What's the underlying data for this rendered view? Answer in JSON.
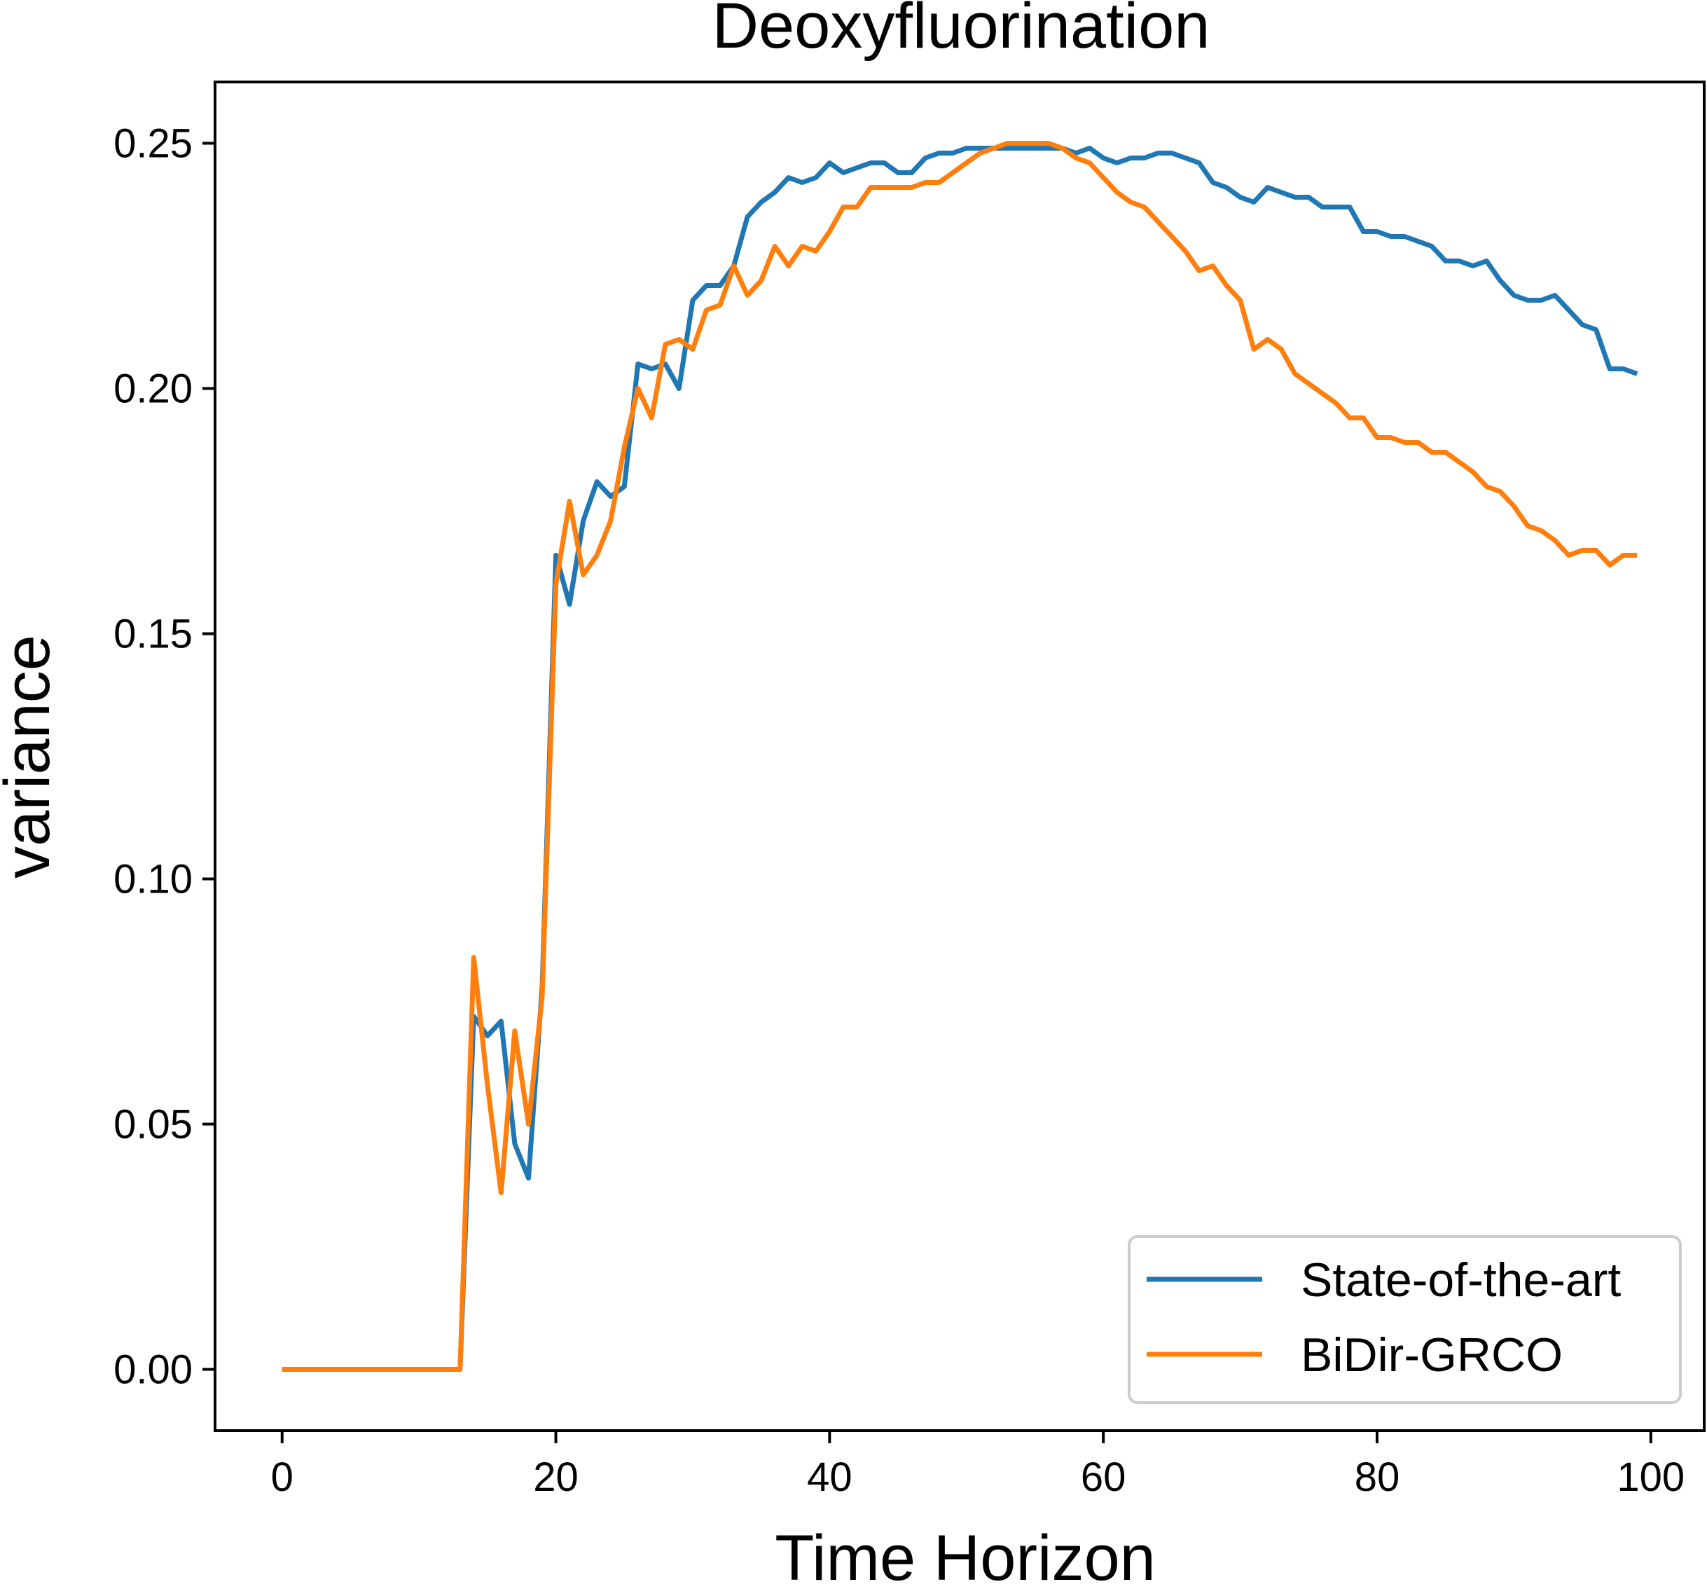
{
  "chart_data": {
    "type": "line",
    "title": "Deoxyfluorination",
    "xlabel": "Time Horizon",
    "ylabel": "variance",
    "xlim": [
      -4.9,
      103.9
    ],
    "ylim": [
      -0.0125,
      0.2625
    ],
    "xticks": [
      0,
      20,
      40,
      60,
      80,
      100
    ],
    "xtick_labels": [
      "0",
      "20",
      "40",
      "60",
      "80",
      "100"
    ],
    "yticks": [
      0.0,
      0.05,
      0.1,
      0.15,
      0.2,
      0.25
    ],
    "ytick_labels": [
      "0.00",
      "0.05",
      "0.10",
      "0.15",
      "0.20",
      "0.25"
    ],
    "grid": false,
    "legend_position": "lower-right",
    "x": [
      0,
      1,
      2,
      3,
      4,
      5,
      6,
      7,
      8,
      9,
      10,
      11,
      12,
      13,
      14,
      15,
      16,
      17,
      18,
      19,
      20,
      21,
      22,
      23,
      24,
      25,
      26,
      27,
      28,
      29,
      30,
      31,
      32,
      33,
      34,
      35,
      36,
      37,
      38,
      39,
      40,
      41,
      42,
      43,
      44,
      45,
      46,
      47,
      48,
      49,
      50,
      51,
      52,
      53,
      54,
      55,
      56,
      57,
      58,
      59,
      60,
      61,
      62,
      63,
      64,
      65,
      66,
      67,
      68,
      69,
      70,
      71,
      72,
      73,
      74,
      75,
      76,
      77,
      78,
      79,
      80,
      81,
      82,
      83,
      84,
      85,
      86,
      87,
      88,
      89,
      90,
      91,
      92,
      93,
      94,
      95,
      96,
      97,
      98,
      99
    ],
    "series": [
      {
        "name": "State-of-the-art",
        "color": "#1f77b4",
        "values": [
          0,
          0,
          0,
          0,
          0,
          0,
          0,
          0,
          0,
          0,
          0,
          0,
          0,
          0,
          0.072,
          0.068,
          0.071,
          0.046,
          0.039,
          0.078,
          0.166,
          0.156,
          0.173,
          0.181,
          0.178,
          0.18,
          0.205,
          0.204,
          0.205,
          0.2,
          0.218,
          0.221,
          0.221,
          0.225,
          0.235,
          0.238,
          0.24,
          0.243,
          0.242,
          0.243,
          0.246,
          0.244,
          0.245,
          0.246,
          0.246,
          0.244,
          0.244,
          0.247,
          0.248,
          0.248,
          0.249,
          0.249,
          0.249,
          0.249,
          0.249,
          0.249,
          0.249,
          0.249,
          0.248,
          0.249,
          0.247,
          0.246,
          0.247,
          0.247,
          0.248,
          0.248,
          0.247,
          0.246,
          0.242,
          0.241,
          0.239,
          0.238,
          0.241,
          0.24,
          0.239,
          0.239,
          0.237,
          0.237,
          0.237,
          0.232,
          0.232,
          0.231,
          0.231,
          0.23,
          0.229,
          0.226,
          0.226,
          0.225,
          0.226,
          0.222,
          0.219,
          0.218,
          0.218,
          0.219,
          0.216,
          0.213,
          0.212,
          0.204,
          0.204,
          0.203
        ]
      },
      {
        "name": "BiDir-GRCO",
        "color": "#ff7f0e",
        "values": [
          0,
          0,
          0,
          0,
          0,
          0,
          0,
          0,
          0,
          0,
          0,
          0,
          0,
          0,
          0.084,
          0.058,
          0.036,
          0.069,
          0.05,
          0.076,
          0.16,
          0.177,
          0.162,
          0.166,
          0.173,
          0.188,
          0.2,
          0.194,
          0.209,
          0.21,
          0.208,
          0.216,
          0.217,
          0.225,
          0.219,
          0.222,
          0.229,
          0.225,
          0.229,
          0.228,
          0.232,
          0.237,
          0.237,
          0.241,
          0.241,
          0.241,
          0.241,
          0.242,
          0.242,
          0.244,
          0.246,
          0.248,
          0.249,
          0.25,
          0.25,
          0.25,
          0.25,
          0.249,
          0.247,
          0.246,
          0.243,
          0.24,
          0.238,
          0.237,
          0.234,
          0.231,
          0.228,
          0.224,
          0.225,
          0.221,
          0.218,
          0.208,
          0.21,
          0.208,
          0.203,
          0.201,
          0.199,
          0.197,
          0.194,
          0.194,
          0.19,
          0.19,
          0.189,
          0.189,
          0.187,
          0.187,
          0.185,
          0.183,
          0.18,
          0.179,
          0.176,
          0.172,
          0.171,
          0.169,
          0.166,
          0.167,
          0.167,
          0.164,
          0.166,
          0.166
        ]
      }
    ]
  }
}
